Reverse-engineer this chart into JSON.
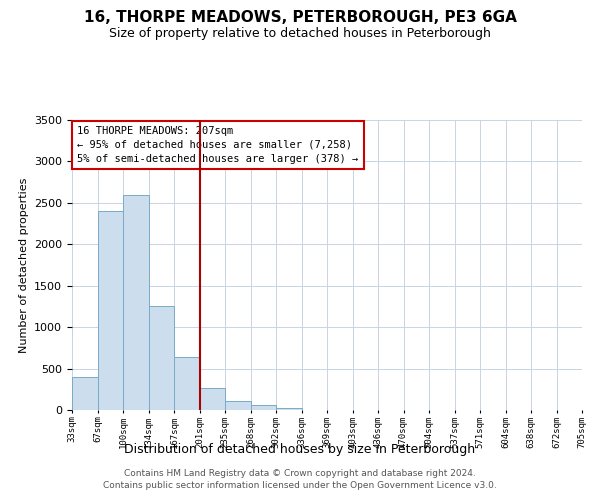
{
  "title": "16, THORPE MEADOWS, PETERBOROUGH, PE3 6GA",
  "subtitle": "Size of property relative to detached houses in Peterborough",
  "xlabel": "Distribution of detached houses by size in Peterborough",
  "ylabel": "Number of detached properties",
  "bar_color": "#ccdded",
  "bar_edge_color": "#7aaac8",
  "bin_labels": [
    "33sqm",
    "67sqm",
    "100sqm",
    "134sqm",
    "167sqm",
    "201sqm",
    "235sqm",
    "268sqm",
    "302sqm",
    "336sqm",
    "369sqm",
    "403sqm",
    "436sqm",
    "470sqm",
    "504sqm",
    "537sqm",
    "571sqm",
    "604sqm",
    "638sqm",
    "672sqm",
    "705sqm"
  ],
  "values": [
    400,
    2400,
    2600,
    1250,
    640,
    260,
    110,
    55,
    30,
    0,
    0,
    0,
    0,
    0,
    0,
    0,
    0,
    0,
    0,
    0
  ],
  "ylim": [
    0,
    3500
  ],
  "vline_color": "#aa0000",
  "annotation_title": "16 THORPE MEADOWS: 207sqm",
  "annotation_line1": "← 95% of detached houses are smaller (7,258)",
  "annotation_line2": "5% of semi-detached houses are larger (378) →",
  "annotation_box_color": "#ffffff",
  "annotation_box_edge": "#cc0000",
  "footer1": "Contains HM Land Registry data © Crown copyright and database right 2024.",
  "footer2": "Contains public sector information licensed under the Open Government Licence v3.0.",
  "background_color": "#ffffff",
  "grid_color": "#c8d4e4"
}
